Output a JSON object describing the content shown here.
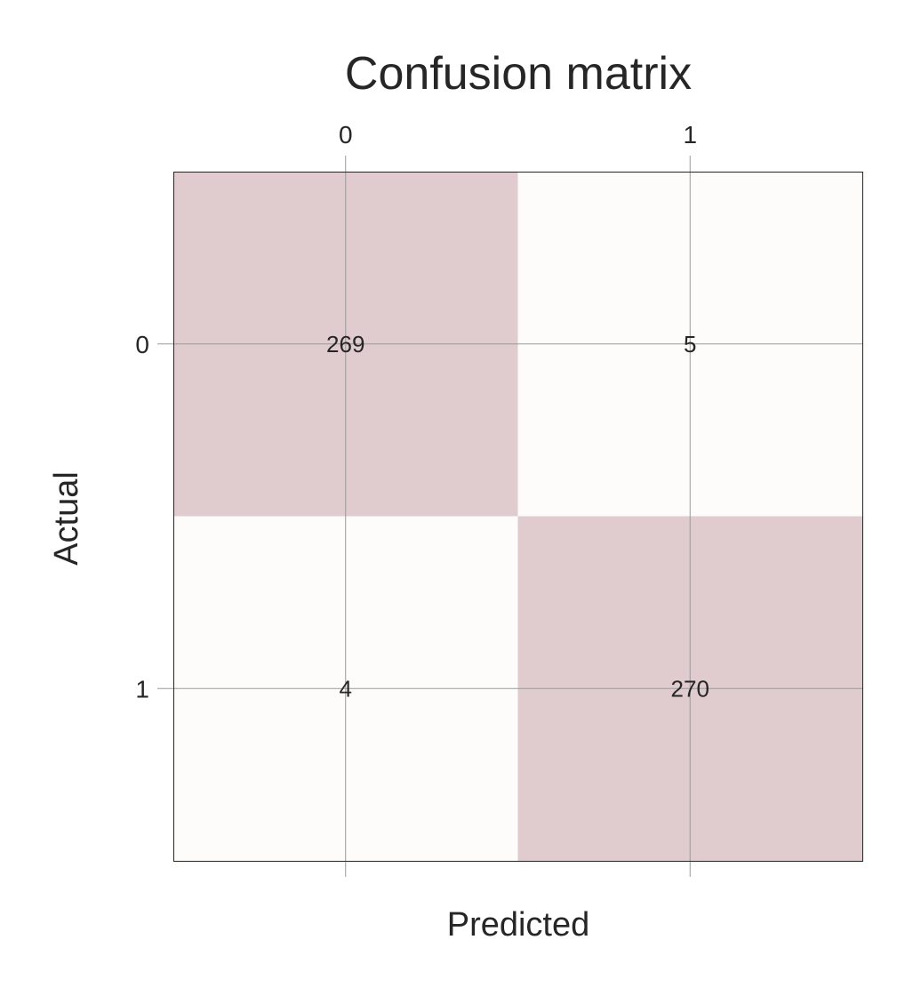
{
  "chart_data": {
    "type": "heatmap",
    "title": "Confusion matrix",
    "xlabel": "Predicted",
    "ylabel": "Actual",
    "x_categories": [
      "0",
      "1"
    ],
    "y_categories": [
      "0",
      "1"
    ],
    "values": [
      [
        269,
        5
      ],
      [
        4,
        270
      ]
    ],
    "grid": true,
    "x_ticks_position": "top",
    "colors": {
      "high": "#e0cbcf",
      "low": "#fdfcfb",
      "grid": "#9a9a9a",
      "text": "#262626",
      "frame": "#262626"
    }
  }
}
